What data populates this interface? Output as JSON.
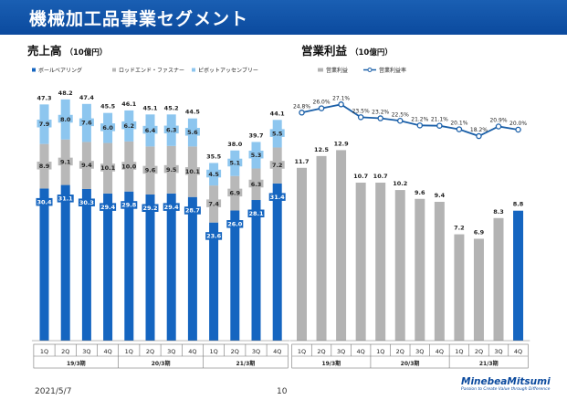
{
  "title": "機械加工品事業セグメント",
  "footer": {
    "date": "2021/5/7",
    "page": "10"
  },
  "logo": {
    "name": "MinebeaMitsumi",
    "tagline": "Passion to Create Value through Difference"
  },
  "colors": {
    "title_bg": "#0b4a9e",
    "ball_bearing": "#1565c0",
    "rod_end": "#b8b8b8",
    "pivot": "#8dc6ef",
    "op_income": "#b3b3b3",
    "op_income_latest": "#1565c0",
    "op_margin": "#1a5fa8"
  },
  "chart_data": [
    {
      "type": "bar",
      "stacked": true,
      "title": "売上高",
      "unit": "（10億円）",
      "legend_position": "top",
      "categories": [
        "1Q",
        "2Q",
        "3Q",
        "4Q",
        "1Q",
        "2Q",
        "3Q",
        "4Q",
        "1Q",
        "2Q",
        "3Q",
        "4Q"
      ],
      "year_groups": [
        "19/3期",
        "20/3期",
        "21/3期"
      ],
      "series": [
        {
          "name": "ボールベアリング",
          "values": [
            30.4,
            31.1,
            30.3,
            29.4,
            29.8,
            29.2,
            29.4,
            28.7,
            23.6,
            26.0,
            28.1,
            31.4
          ]
        },
        {
          "name": "ロッドエンド・ファスナー",
          "values": [
            8.9,
            9.1,
            9.4,
            10.1,
            10.0,
            9.6,
            9.5,
            10.1,
            7.4,
            6.9,
            6.3,
            7.2
          ]
        },
        {
          "name": "ピボットアッセンブリー",
          "values": [
            7.9,
            8.0,
            7.6,
            6.0,
            6.2,
            6.4,
            6.3,
            5.6,
            4.5,
            5.1,
            5.3,
            5.5
          ]
        }
      ],
      "totals": [
        47.3,
        48.2,
        47.4,
        45.5,
        46.1,
        45.1,
        45.2,
        44.5,
        35.5,
        38.0,
        39.7,
        44.1
      ],
      "ylim": [
        0,
        60
      ]
    },
    {
      "type": "bar+line",
      "title": "営業利益",
      "unit": "（10億円）",
      "legend_position": "top",
      "categories": [
        "1Q",
        "2Q",
        "3Q",
        "4Q",
        "1Q",
        "2Q",
        "3Q",
        "4Q",
        "1Q",
        "2Q",
        "3Q",
        "4Q"
      ],
      "year_groups": [
        "19/3期",
        "20/3期",
        "21/3期"
      ],
      "series": [
        {
          "name": "営業利益",
          "kind": "bar",
          "values": [
            11.7,
            12.5,
            12.9,
            10.7,
            10.7,
            10.2,
            9.6,
            9.4,
            7.2,
            6.9,
            8.3,
            8.8
          ]
        },
        {
          "name": "営業利益率",
          "kind": "line",
          "values": [
            24.8,
            26.0,
            27.1,
            23.5,
            23.2,
            22.5,
            21.2,
            21.1,
            20.1,
            18.2,
            20.9,
            20.0
          ],
          "labels": [
            "24.8%",
            "26.0%",
            "27.1%",
            "23.5%",
            "23.2%",
            "22.5%",
            "21.2%",
            "21.1%",
            "20.1%",
            "18.2%",
            "20.9%",
            "20.0%"
          ]
        }
      ],
      "ylim": [
        0,
        16
      ]
    }
  ]
}
